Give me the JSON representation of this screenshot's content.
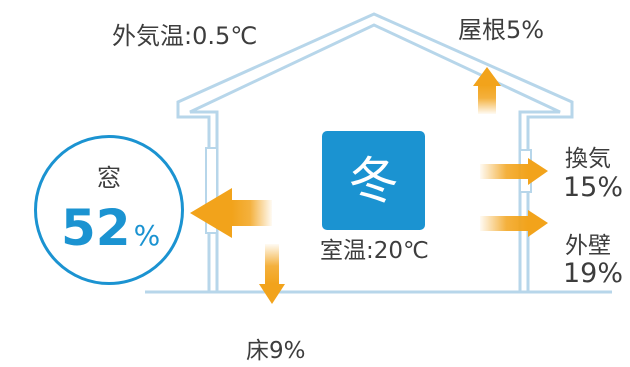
{
  "labels": {
    "outside_temp": "外気温:0.5℃",
    "room_temp": "室温:20℃",
    "season": "冬"
  },
  "heat_loss": {
    "window": {
      "name": "窓",
      "value": "52",
      "unit": "%"
    },
    "roof": {
      "text": "屋根5%"
    },
    "ventilation": {
      "name": "換気",
      "value": "15%"
    },
    "wall": {
      "name": "外壁",
      "value": "19%"
    },
    "floor": {
      "text": "床9%"
    }
  },
  "colors": {
    "accent_blue": "#1b93d1",
    "arrow_orange": "#f2a31b",
    "house_outline": "#b7d6ea",
    "text": "#3d3d3d"
  }
}
